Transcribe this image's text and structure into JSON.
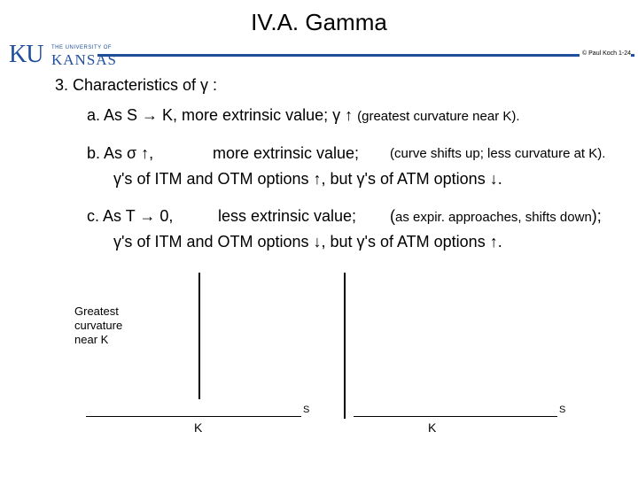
{
  "slide": {
    "title": "IV.A.  Gamma",
    "credit": "© Paul Koch 1-24",
    "logo": {
      "ku": "KU",
      "university": "THE UNIVERSITY OF",
      "kansas": "KANSAS"
    }
  },
  "heading": "3.  Characteristics of  γ :",
  "items": {
    "a": {
      "line1": "a.  As  S → K,  more extrinsic value;   γ ↑  ",
      "note1": "(greatest curvature near K)."
    },
    "b": {
      "lead": "b.  As    σ ↑,",
      "text": "more extrinsic value;",
      "note": "(curve shifts up;  less curvature at K).",
      "line2": "γ's  of  ITM  and  OTM  options  ↑,  but  γ's  of  ATM  options ↓."
    },
    "c": {
      "lead": "c.  As  T → 0,",
      "text": "less extrinsic value;",
      "note_open": "(",
      "note": "as expir. approaches, shifts down",
      "note_close": ");",
      "line2": "γ's  of  ITM  and  OTM  options  ↓,  but  γ's  of  ATM  options ↑."
    }
  },
  "graphs": {
    "left_label_lines": [
      "Greatest",
      "curvature",
      "near K"
    ],
    "axis_end": "S",
    "k_label": "K"
  }
}
